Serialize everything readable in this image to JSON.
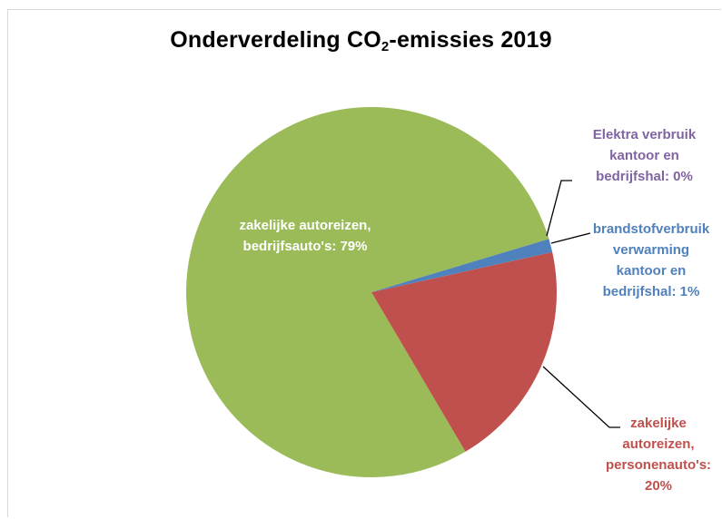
{
  "chart_data": {
    "type": "pie",
    "title_main": "Onderverdeling CO",
    "title_sub": "2",
    "title_rest": "-emissies 2019",
    "slices": [
      {
        "label_lines": [
          "zakelijke autoreizen,",
          "bedrijfsauto's: 79%"
        ],
        "value": 79,
        "color": "#9bbb59"
      },
      {
        "label_lines": [
          "Elektra verbruik",
          "kantoor en",
          "bedrijfshal: 0%"
        ],
        "value": 0,
        "color": "#8064a2"
      },
      {
        "label_lines": [
          "brandstofverbruik",
          "verwarming",
          "kantoor en",
          "bedrijfshal: 1%"
        ],
        "value": 1,
        "color": "#4f81bd"
      },
      {
        "label_lines": [
          "zakelijke",
          "autoreizen,",
          "personenauto's:",
          "20%"
        ],
        "value": 20,
        "color": "#c0504d"
      }
    ]
  }
}
